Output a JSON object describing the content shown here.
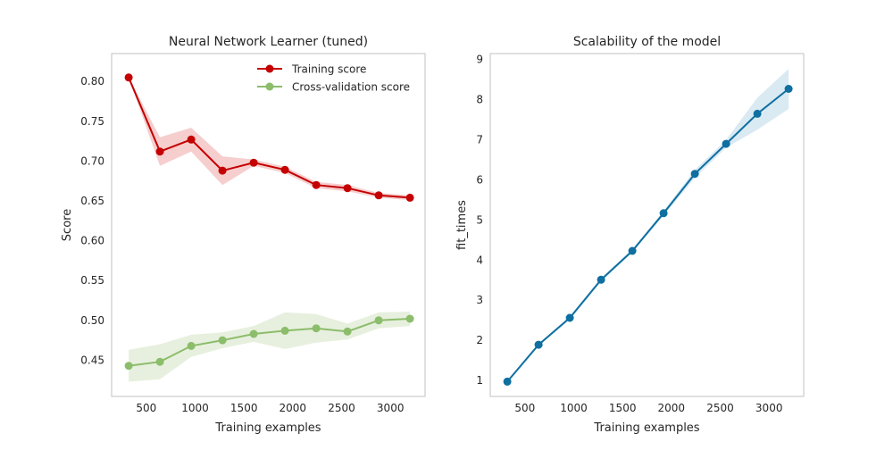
{
  "chart_data": [
    {
      "type": "line",
      "title": "Neural Network Learner (tuned)",
      "xlabel": "Training examples",
      "ylabel": "Score",
      "xlim": [
        145,
        3355
      ],
      "ylim": [
        0.4045,
        0.835
      ],
      "xticks": [
        500,
        1000,
        1500,
        2000,
        2500,
        3000
      ],
      "yticks": [
        0.45,
        0.5,
        0.55,
        0.6,
        0.65,
        0.7,
        0.75,
        0.8
      ],
      "ytick_labels": [
        "0.45",
        "0.50",
        "0.55",
        "0.60",
        "0.65",
        "0.70",
        "0.75",
        "0.80"
      ],
      "grid": false,
      "legend_position": "top-right",
      "x": [
        320,
        640,
        960,
        1280,
        1600,
        1920,
        2240,
        2560,
        2880,
        3200
      ],
      "series": [
        {
          "name": "Training score",
          "color": "#c40000",
          "band_color": "#f5c6c6",
          "values": [
            0.805,
            0.712,
            0.727,
            0.688,
            0.698,
            0.689,
            0.67,
            0.666,
            0.657,
            0.654
          ],
          "upper": [
            0.805,
            0.73,
            0.742,
            0.706,
            0.702,
            0.693,
            0.674,
            0.67,
            0.66,
            0.657
          ],
          "lower": [
            0.805,
            0.694,
            0.712,
            0.67,
            0.694,
            0.685,
            0.666,
            0.662,
            0.654,
            0.651
          ]
        },
        {
          "name": "Cross-validation score",
          "color": "#8cbd6b",
          "band_color": "#e3edd8",
          "values": [
            0.443,
            0.448,
            0.468,
            0.475,
            0.483,
            0.487,
            0.49,
            0.486,
            0.5,
            0.502
          ],
          "upper": [
            0.463,
            0.47,
            0.482,
            0.485,
            0.493,
            0.51,
            0.508,
            0.496,
            0.51,
            0.511
          ],
          "lower": [
            0.423,
            0.426,
            0.454,
            0.465,
            0.473,
            0.464,
            0.472,
            0.476,
            0.49,
            0.493
          ]
        }
      ]
    },
    {
      "type": "line",
      "title": "Scalability of the model",
      "xlabel": "Training examples",
      "ylabel": "fit_times",
      "xlim": [
        145,
        3355
      ],
      "ylim": [
        0.6,
        9.15
      ],
      "xticks": [
        500,
        1000,
        1500,
        2000,
        2500,
        3000
      ],
      "yticks": [
        1,
        2,
        3,
        4,
        5,
        6,
        7,
        8,
        9
      ],
      "ytick_labels": [
        "1",
        "2",
        "3",
        "4",
        "5",
        "6",
        "7",
        "8",
        "9"
      ],
      "grid": false,
      "x": [
        320,
        640,
        960,
        1280,
        1600,
        1920,
        2240,
        2560,
        2880,
        3200
      ],
      "series": [
        {
          "color": "#0e6fa0",
          "band_color": "#d4e6f1",
          "values": [
            0.97,
            1.89,
            2.56,
            3.51,
            4.23,
            5.17,
            6.15,
            6.9,
            7.65,
            8.27
          ],
          "upper": [
            0.99,
            1.92,
            2.6,
            3.56,
            4.27,
            5.23,
            6.25,
            7.0,
            8.05,
            8.77
          ],
          "lower": [
            0.95,
            1.86,
            2.52,
            3.46,
            4.19,
            5.11,
            6.05,
            6.8,
            7.25,
            7.77
          ]
        }
      ]
    }
  ]
}
